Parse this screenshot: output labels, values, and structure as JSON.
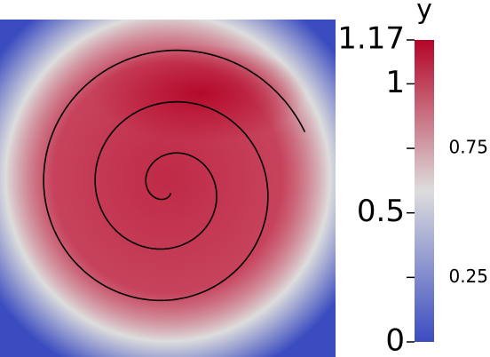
{
  "chart_data": {
    "type": "colormap-field",
    "title": "y",
    "colorbar_lim": [
      0,
      1.17
    ],
    "colorbar_ticks": [
      0,
      0.25,
      0.5,
      0.75,
      1,
      1.17
    ],
    "colormap": [
      "#3b4cc0",
      "#dddddd",
      "#b40426"
    ]
  }
}
